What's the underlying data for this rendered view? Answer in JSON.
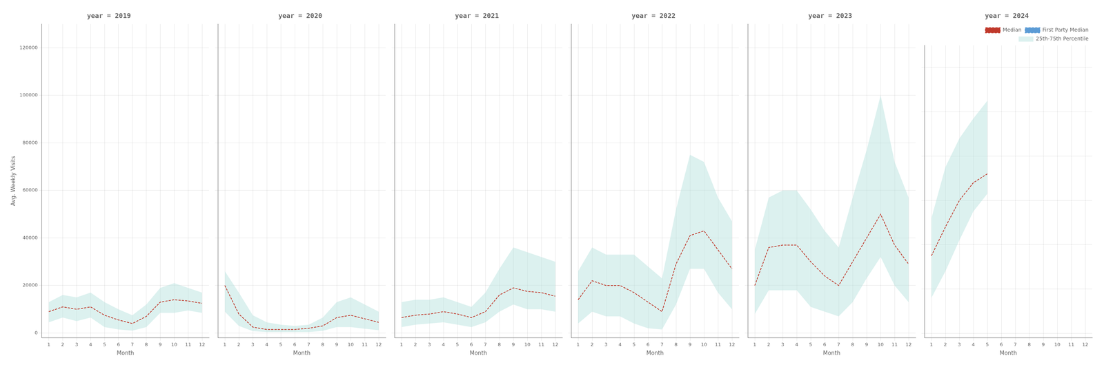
{
  "chart_data": [
    {
      "type": "line",
      "title": "year = 2019",
      "x_label": "Month",
      "y_label": "Avg. Weekly Visits",
      "x": [
        1,
        2,
        3,
        4,
        5,
        6,
        7,
        8,
        9,
        10,
        11,
        12
      ],
      "xlim": [
        0.5,
        12.5
      ],
      "xticks": [
        1,
        2,
        3,
        4,
        5,
        6,
        7,
        8,
        9,
        10,
        11,
        12
      ],
      "ylim": [
        -2000,
        130000
      ],
      "yticks": [
        0,
        20000,
        40000,
        60000,
        80000,
        100000,
        120000
      ],
      "grid": true,
      "legend": false,
      "series": [
        {
          "name": "Median",
          "color": "#c0392b",
          "line_style": "dashed",
          "values": [
            9000,
            11000,
            10000,
            11000,
            7500,
            5500,
            4000,
            7000,
            13000,
            14000,
            13500,
            12500
          ]
        },
        {
          "name": "First Party Median",
          "color": "#5b9bd5",
          "line_style": "dashed",
          "values": [
            null,
            null,
            null,
            null,
            null,
            null,
            null,
            null,
            null,
            null,
            null,
            null
          ]
        },
        {
          "name": "25th-75th Percentile",
          "type": "band",
          "color": "#b2dfdb",
          "lower": [
            4500,
            6500,
            5000,
            6500,
            2500,
            1500,
            1000,
            2500,
            8500,
            8500,
            9500,
            8500
          ],
          "upper": [
            13000,
            16000,
            15000,
            17000,
            13000,
            10000,
            7500,
            12000,
            19000,
            21000,
            19000,
            17000
          ]
        }
      ]
    },
    {
      "type": "line",
      "title": "year = 2020",
      "x_label": "Month",
      "x": [
        1,
        2,
        3,
        4,
        5,
        6,
        7,
        8,
        9,
        10,
        11,
        12
      ],
      "xlim": [
        0.5,
        12.5
      ],
      "xticks": [
        1,
        2,
        3,
        4,
        5,
        6,
        7,
        8,
        9,
        10,
        11,
        12
      ],
      "ylim": [
        -2000,
        130000
      ],
      "yticks": [
        0,
        20000,
        40000,
        60000,
        80000,
        100000,
        120000
      ],
      "grid": true,
      "legend": false,
      "tick_labels": "x",
      "series": [
        {
          "name": "Median",
          "color": "#c0392b",
          "line_style": "dashed",
          "values": [
            20000,
            8000,
            2500,
            1500,
            1500,
            1500,
            2000,
            3000,
            6500,
            7500,
            6000,
            4500
          ]
        },
        {
          "name": "First Party Median",
          "color": "#5b9bd5",
          "line_style": "dashed",
          "values": [
            null,
            null,
            null,
            null,
            null,
            null,
            null,
            null,
            null,
            null,
            null,
            null
          ]
        },
        {
          "name": "25th-75th Percentile",
          "type": "band",
          "color": "#b2dfdb",
          "lower": [
            9000,
            3000,
            800,
            400,
            400,
            400,
            400,
            900,
            2500,
            2500,
            1800,
            1200
          ],
          "upper": [
            26000,
            17000,
            7500,
            4500,
            3500,
            3000,
            3500,
            6500,
            13000,
            15000,
            12000,
            9000
          ]
        }
      ]
    },
    {
      "type": "line",
      "title": "year = 2021",
      "x_label": "Month",
      "x": [
        1,
        2,
        3,
        4,
        5,
        6,
        7,
        8,
        9,
        10,
        11,
        12
      ],
      "xlim": [
        0.5,
        12.5
      ],
      "xticks": [
        1,
        2,
        3,
        4,
        5,
        6,
        7,
        8,
        9,
        10,
        11,
        12
      ],
      "ylim": [
        -2000,
        130000
      ],
      "yticks": [
        0,
        20000,
        40000,
        60000,
        80000,
        100000,
        120000
      ],
      "grid": true,
      "legend": false,
      "tick_labels": "x",
      "series": [
        {
          "name": "Median",
          "color": "#c0392b",
          "line_style": "dashed",
          "values": [
            6500,
            7500,
            8000,
            9000,
            8000,
            6500,
            9000,
            16000,
            19000,
            17500,
            17000,
            15500
          ]
        },
        {
          "name": "First Party Median",
          "color": "#5b9bd5",
          "line_style": "dashed",
          "values": [
            null,
            null,
            null,
            null,
            null,
            null,
            null,
            null,
            null,
            null,
            null,
            null
          ]
        },
        {
          "name": "25th-75th Percentile",
          "type": "band",
          "color": "#b2dfdb",
          "lower": [
            2500,
            3500,
            4000,
            4500,
            3500,
            2500,
            4500,
            9000,
            12000,
            10000,
            10000,
            9000
          ],
          "upper": [
            13000,
            14000,
            14000,
            15000,
            13000,
            11000,
            17000,
            27000,
            36000,
            34000,
            32000,
            30000
          ]
        }
      ]
    },
    {
      "type": "line",
      "title": "year = 2022",
      "x_label": "Month",
      "x": [
        1,
        2,
        3,
        4,
        5,
        6,
        7,
        8,
        9,
        10,
        11,
        12
      ],
      "xlim": [
        0.5,
        12.5
      ],
      "xticks": [
        1,
        2,
        3,
        4,
        5,
        6,
        7,
        8,
        9,
        10,
        11,
        12
      ],
      "ylim": [
        -2000,
        130000
      ],
      "yticks": [
        0,
        20000,
        40000,
        60000,
        80000,
        100000,
        120000
      ],
      "grid": true,
      "legend": false,
      "tick_labels": "x",
      "series": [
        {
          "name": "Median",
          "color": "#c0392b",
          "line_style": "dashed",
          "values": [
            14000,
            22000,
            20000,
            20000,
            17000,
            13000,
            9000,
            29000,
            41000,
            43000,
            35000,
            27000
          ]
        },
        {
          "name": "First Party Median",
          "color": "#5b9bd5",
          "line_style": "dashed",
          "values": [
            null,
            null,
            null,
            null,
            null,
            null,
            null,
            null,
            null,
            null,
            null,
            null
          ]
        },
        {
          "name": "25th-75th Percentile",
          "type": "band",
          "color": "#b2dfdb",
          "lower": [
            4000,
            9000,
            7000,
            7000,
            4000,
            2000,
            1500,
            12000,
            27000,
            27000,
            17000,
            10000
          ],
          "upper": [
            26000,
            36000,
            33000,
            33000,
            33000,
            28000,
            23000,
            52000,
            75000,
            72000,
            57000,
            47000
          ]
        }
      ]
    },
    {
      "type": "line",
      "title": "year = 2023",
      "x_label": "Month",
      "x": [
        1,
        2,
        3,
        4,
        5,
        6,
        7,
        8,
        9,
        10,
        11,
        12
      ],
      "xlim": [
        0.5,
        12.5
      ],
      "xticks": [
        1,
        2,
        3,
        4,
        5,
        6,
        7,
        8,
        9,
        10,
        11,
        12
      ],
      "ylim": [
        -2000,
        130000
      ],
      "yticks": [
        0,
        20000,
        40000,
        60000,
        80000,
        100000,
        120000
      ],
      "grid": true,
      "legend": false,
      "tick_labels": "x",
      "series": [
        {
          "name": "Median",
          "color": "#c0392b",
          "line_style": "dashed",
          "values": [
            20000,
            36000,
            37000,
            37000,
            30000,
            24000,
            20000,
            30000,
            40000,
            50000,
            37000,
            29000
          ]
        },
        {
          "name": "First Party Median",
          "color": "#5b9bd5",
          "line_style": "dashed",
          "values": [
            null,
            null,
            null,
            null,
            null,
            null,
            null,
            null,
            null,
            null,
            null,
            null
          ]
        },
        {
          "name": "25th-75th Percentile",
          "type": "band",
          "color": "#b2dfdb",
          "lower": [
            8000,
            18000,
            18000,
            18000,
            11000,
            9000,
            7000,
            13000,
            23000,
            32000,
            20000,
            13000
          ],
          "upper": [
            35000,
            57000,
            60000,
            60000,
            52000,
            43000,
            36000,
            57000,
            77000,
            100000,
            72000,
            57000
          ]
        }
      ]
    },
    {
      "type": "line",
      "title": "year = 2024",
      "x_label": "Month",
      "x": [
        1,
        2,
        3,
        4,
        5,
        6,
        7,
        8,
        9,
        10,
        11,
        12
      ],
      "xlim": [
        0.5,
        12.5
      ],
      "xticks": [
        1,
        2,
        3,
        4,
        5,
        6,
        7,
        8,
        9,
        10,
        11,
        12
      ],
      "ylim": [
        -2000,
        130000
      ],
      "yticks": [
        0,
        20000,
        40000,
        60000,
        80000,
        100000,
        120000
      ],
      "grid": true,
      "legend": "upper right",
      "tick_labels": "x",
      "series": [
        {
          "name": "Median",
          "color": "#c0392b",
          "line_style": "dashed",
          "values": [
            35000,
            48000,
            60000,
            68000,
            72000,
            null,
            null,
            null,
            null,
            null,
            null,
            null
          ]
        },
        {
          "name": "First Party Median",
          "color": "#5b9bd5",
          "line_style": "dashed",
          "values": [
            null,
            null,
            null,
            null,
            null,
            null,
            null,
            null,
            null,
            null,
            null,
            null
          ]
        },
        {
          "name": "25th-75th Percentile",
          "type": "band",
          "color": "#b2dfdb",
          "lower": [
            16000,
            28000,
            42000,
            55000,
            63000,
            null,
            null,
            null,
            null,
            null,
            null,
            null
          ],
          "upper": [
            52000,
            75000,
            88000,
            97000,
            105000,
            null,
            null,
            null,
            null,
            null,
            null,
            null
          ]
        }
      ]
    }
  ]
}
